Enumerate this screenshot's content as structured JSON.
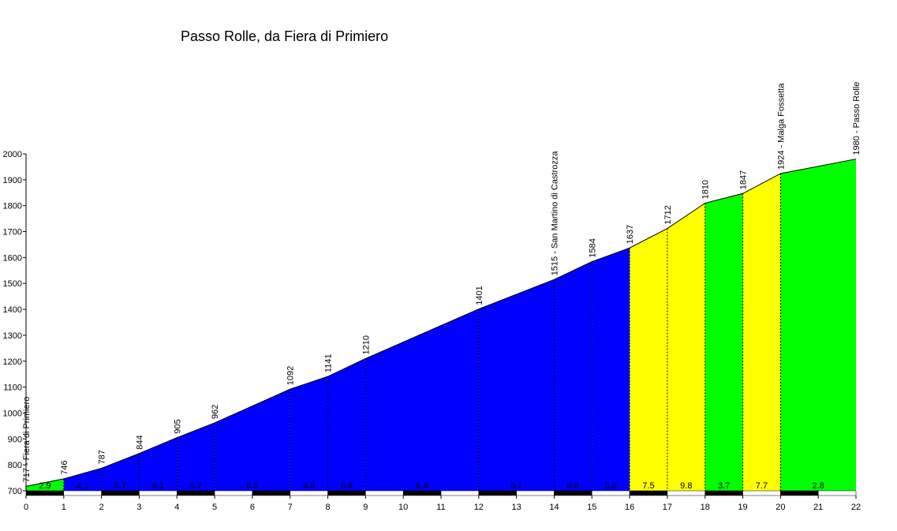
{
  "chart_data": {
    "type": "area",
    "title": "Passo Rolle, da Fiera di Primiero",
    "xlabel": "",
    "ylabel": "",
    "xlim": [
      0,
      22
    ],
    "ylim": [
      700,
      2000
    ],
    "x_ticks": [
      "0",
      "1",
      "2",
      "3",
      "4",
      "5",
      "6",
      "7",
      "8",
      "9",
      "10",
      "11",
      "12",
      "13",
      "14",
      "15",
      "16",
      "17",
      "18",
      "19",
      "20",
      "21",
      "22"
    ],
    "y_ticks": [
      "700",
      "800",
      "900",
      "1000",
      "1100",
      "1200",
      "1300",
      "1400",
      "1500",
      "1600",
      "1700",
      "1800",
      "1900",
      "2000"
    ],
    "profile": [
      {
        "x": 0,
        "y": 717
      },
      {
        "x": 1,
        "y": 746
      },
      {
        "x": 2,
        "y": 787
      },
      {
        "x": 3,
        "y": 844
      },
      {
        "x": 4,
        "y": 905
      },
      {
        "x": 5,
        "y": 962
      },
      {
        "x": 7,
        "y": 1092
      },
      {
        "x": 8,
        "y": 1141
      },
      {
        "x": 9,
        "y": 1210
      },
      {
        "x": 12,
        "y": 1401
      },
      {
        "x": 14,
        "y": 1515
      },
      {
        "x": 15,
        "y": 1584
      },
      {
        "x": 16,
        "y": 1637
      },
      {
        "x": 17,
        "y": 1712
      },
      {
        "x": 18,
        "y": 1810
      },
      {
        "x": 19,
        "y": 1847
      },
      {
        "x": 20,
        "y": 1924
      },
      {
        "x": 22,
        "y": 1980
      }
    ],
    "point_labels": [
      {
        "x": 0,
        "text": "717 - Fiera di Primiero"
      },
      {
        "x": 1,
        "text": "746"
      },
      {
        "x": 2,
        "text": "787"
      },
      {
        "x": 3,
        "text": "844"
      },
      {
        "x": 4,
        "text": "905"
      },
      {
        "x": 5,
        "text": "962"
      },
      {
        "x": 7,
        "text": "1092"
      },
      {
        "x": 8,
        "text": "1141"
      },
      {
        "x": 9,
        "text": "1210"
      },
      {
        "x": 12,
        "text": "1401"
      },
      {
        "x": 14,
        "text": "1515 - San Martino di Castrozza"
      },
      {
        "x": 15,
        "text": "1584"
      },
      {
        "x": 16,
        "text": "1637"
      },
      {
        "x": 17,
        "text": "1712"
      },
      {
        "x": 18,
        "text": "1810"
      },
      {
        "x": 19,
        "text": "1847"
      },
      {
        "x": 20,
        "text": "1924 - Malga Fossetta"
      },
      {
        "x": 22,
        "text": "1980 - Passo Rolle"
      }
    ],
    "segments": [
      {
        "x0": 0,
        "x1": 1,
        "gradient": "2.9",
        "color": "#00ff00"
      },
      {
        "x0": 1,
        "x1": 2,
        "gradient": "4.1",
        "color": "#0000ff"
      },
      {
        "x0": 2,
        "x1": 3,
        "gradient": "5.7",
        "color": "#0000ff"
      },
      {
        "x0": 3,
        "x1": 4,
        "gradient": "6.1",
        "color": "#0000ff"
      },
      {
        "x0": 4,
        "x1": 5,
        "gradient": "5.7",
        "color": "#0000ff"
      },
      {
        "x0": 5,
        "x1": 7,
        "gradient": "6.5",
        "color": "#0000ff"
      },
      {
        "x0": 7,
        "x1": 8,
        "gradient": "4.9",
        "color": "#0000ff"
      },
      {
        "x0": 8,
        "x1": 9,
        "gradient": "6.9",
        "color": "#0000ff"
      },
      {
        "x0": 9,
        "x1": 12,
        "gradient": "6.4",
        "color": "#0000ff"
      },
      {
        "x0": 12,
        "x1": 14,
        "gradient": "5.7",
        "color": "#0000ff"
      },
      {
        "x0": 14,
        "x1": 15,
        "gradient": "6.9",
        "color": "#0000ff"
      },
      {
        "x0": 15,
        "x1": 16,
        "gradient": "5.3",
        "color": "#0000ff"
      },
      {
        "x0": 16,
        "x1": 17,
        "gradient": "7.5",
        "color": "#ffff00"
      },
      {
        "x0": 17,
        "x1": 18,
        "gradient": "9.8",
        "color": "#ffff00"
      },
      {
        "x0": 18,
        "x1": 19,
        "gradient": "3.7",
        "color": "#00ff00"
      },
      {
        "x0": 19,
        "x1": 20,
        "gradient": "7.7",
        "color": "#ffff00"
      },
      {
        "x0": 20,
        "x1": 22,
        "gradient": "2.8",
        "color": "#00ff00"
      }
    ],
    "grid": false,
    "legend": "none"
  }
}
